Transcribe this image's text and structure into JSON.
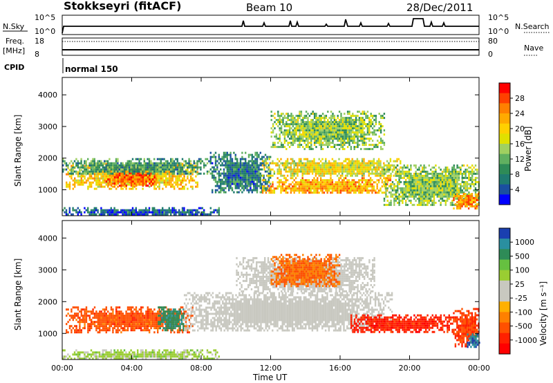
{
  "header": {
    "title": "Stokkseyri (fitACF)",
    "beam": "Beam 10",
    "date": "28/Dec/2011"
  },
  "status_panels": {
    "nsky_label": "N.Sky",
    "nsky_ticks": [
      "10^5",
      "10^0"
    ],
    "nsearch_label": "N.Search",
    "nsearch_ticks": [
      "10^5",
      "10^0"
    ],
    "freq_label": "Freq.",
    "freq_unit": "[MHz]",
    "freq_ticks": [
      "18",
      "8"
    ],
    "nave_label": "Nave",
    "nave_ticks": [
      "80",
      "0"
    ],
    "cpid_label": "CPID",
    "cpid_value": "normal 150"
  },
  "colorbars": {
    "power": {
      "title": "Power [dB]",
      "ticks": [
        "28",
        "24",
        "20",
        "16",
        "12",
        "8",
        "4"
      ],
      "colors": [
        "#ff0000",
        "#ff4000",
        "#ff8000",
        "#ffaa00",
        "#ffd000",
        "#e0e000",
        "#a0d060",
        "#60b060",
        "#2e8b57",
        "#1f7a70",
        "#1a4fa0",
        "#0000ff"
      ]
    },
    "velocity": {
      "title": "Velocity [m s⁻¹]",
      "ticks": [
        "1000",
        "500",
        "100",
        "25",
        "-25",
        "-100",
        "-500",
        "-1000"
      ],
      "colors": [
        "#1a3fb0",
        "#2a8fa0",
        "#2e8b57",
        "#66c040",
        "#9acd32",
        "#c8c8c0",
        "#c8c8c0",
        "#ffb000",
        "#ff8000",
        "#ff5000",
        "#ff2000",
        "#ff0000"
      ]
    }
  },
  "axes": {
    "ylabel": "Slant Range [km]",
    "xlabel": "Time UT",
    "yticks": [
      "4000",
      "3000",
      "2000",
      "1000"
    ],
    "xticks": [
      "00:00",
      "04:00",
      "08:00",
      "12:00",
      "16:00",
      "20:00",
      "00:00"
    ]
  },
  "chart_data": [
    {
      "type": "heatmap",
      "name": "power",
      "xlim_hours": [
        0,
        24
      ],
      "ylim_km": [
        180,
        4550
      ],
      "units": "dB",
      "regions": [
        {
          "x": [
            0.2,
            7.8
          ],
          "y": [
            1050,
            1850
          ],
          "value": 20
        },
        {
          "x": [
            2.5,
            5.5
          ],
          "y": [
            1150,
            1750
          ],
          "value": 26
        },
        {
          "x": [
            0.0,
            8.5
          ],
          "y": [
            1500,
            2000
          ],
          "value": 10
        },
        {
          "x": [
            8.5,
            12.0
          ],
          "y": [
            900,
            2200
          ],
          "value": 8
        },
        {
          "x": [
            11.5,
            19.0
          ],
          "y": [
            900,
            1400
          ],
          "value": 22
        },
        {
          "x": [
            11.5,
            19.5
          ],
          "y": [
            1450,
            2000
          ],
          "value": 18
        },
        {
          "x": [
            12.0,
            18.5
          ],
          "y": [
            2300,
            3500
          ],
          "value": 14
        },
        {
          "x": [
            18.5,
            24.0
          ],
          "y": [
            500,
            1800
          ],
          "value": 14
        },
        {
          "x": [
            22.5,
            24.0
          ],
          "y": [
            400,
            900
          ],
          "value": 24
        },
        {
          "x": [
            0.0,
            9.0
          ],
          "y": [
            200,
            450
          ],
          "value": 6
        }
      ]
    },
    {
      "type": "heatmap",
      "name": "velocity",
      "xlim_hours": [
        0,
        24
      ],
      "ylim_km": [
        180,
        4550
      ],
      "units": "m/s",
      "regions": [
        {
          "x": [
            0.2,
            7.5
          ],
          "y": [
            1050,
            1850
          ],
          "value": -300
        },
        {
          "x": [
            5.5,
            7.0
          ],
          "y": [
            1100,
            1850
          ],
          "value": 300
        },
        {
          "x": [
            7.0,
            19.0
          ],
          "y": [
            1100,
            2300
          ],
          "value": 0
        },
        {
          "x": [
            10.0,
            18.0
          ],
          "y": [
            2300,
            3400
          ],
          "value": 0
        },
        {
          "x": [
            16.5,
            22.5
          ],
          "y": [
            1050,
            1600
          ],
          "value": -600
        },
        {
          "x": [
            12.0,
            16.0
          ],
          "y": [
            2500,
            3500
          ],
          "value": -200
        },
        {
          "x": [
            22.5,
            24.0
          ],
          "y": [
            600,
            1800
          ],
          "value": -400
        },
        {
          "x": [
            23.3,
            24.0
          ],
          "y": [
            600,
            1000
          ],
          "value": 600
        },
        {
          "x": [
            0.0,
            9.0
          ],
          "y": [
            200,
            500
          ],
          "value": 50
        }
      ]
    }
  ]
}
